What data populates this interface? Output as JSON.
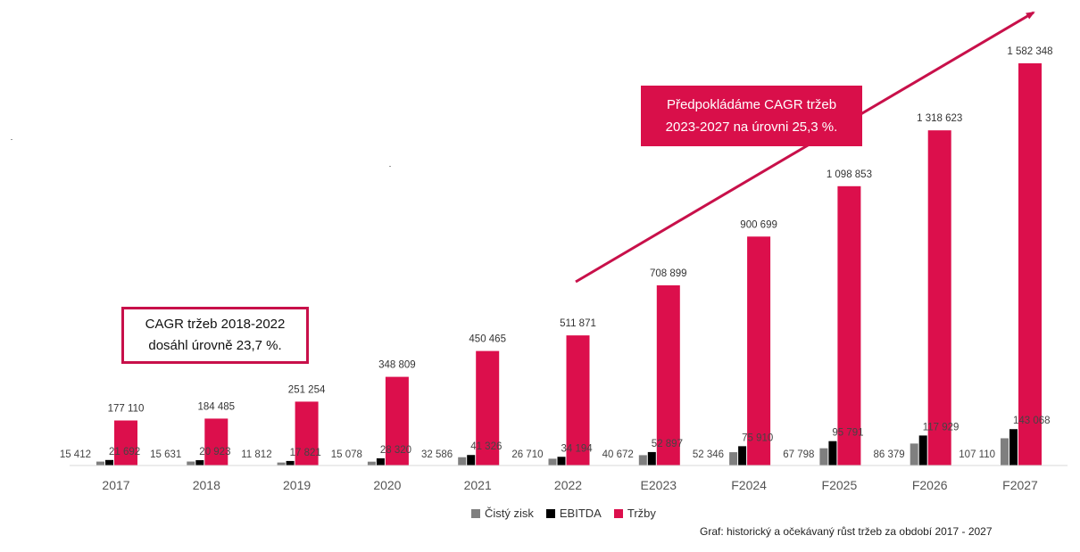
{
  "chart_data": {
    "type": "bar",
    "categories": [
      "2017",
      "2018",
      "2019",
      "2020",
      "2021",
      "2022",
      "E2023",
      "F2024",
      "F2025",
      "F2026",
      "F2027"
    ],
    "series": [
      {
        "name": "Čistý zisk",
        "color": "#7f7f7f",
        "values": [
          15412,
          15631,
          11812,
          15078,
          32586,
          26710,
          40672,
          52346,
          67798,
          86379,
          107110
        ],
        "labels": [
          "15 412",
          "15 631",
          "11 812",
          "15 078",
          "32 586",
          "26 710",
          "40 672",
          "52 346",
          "67 798",
          "86 379",
          "107 110"
        ]
      },
      {
        "name": "EBITDA",
        "color": "#000000",
        "values": [
          21692,
          20923,
          17821,
          28320,
          41326,
          34194,
          52897,
          75910,
          95791,
          117929,
          143068
        ],
        "labels": [
          "21 692",
          "20 923",
          "17 821",
          "28 320",
          "41 326",
          "34 194",
          "52 897",
          "75 910",
          "95 791",
          "117 929",
          "143 068"
        ]
      },
      {
        "name": "Tržby",
        "color": "#dc0f4c",
        "values": [
          177110,
          184485,
          251254,
          348809,
          450465,
          511871,
          708899,
          900699,
          1098853,
          1318623,
          1582348
        ],
        "labels": [
          "177 110",
          "184 485",
          "251 254",
          "348 809",
          "450 465",
          "511 871",
          "708 899",
          "900 699",
          "1 098 853",
          "1 318 623",
          "1 582 348"
        ]
      }
    ],
    "ylim": [
      0,
      1582348
    ],
    "grid": false,
    "legend_position": "bottom-center"
  },
  "annotations": {
    "left_box": {
      "line1": "CAGR tržeb 2018-2022",
      "line2": "dosáhl úrovně 23,7 %."
    },
    "right_box": {
      "line1": "Předpokládáme CAGR tržeb",
      "line2": "2023-2027 na úrovni 25,3 %."
    }
  },
  "legend": {
    "items": [
      {
        "label": "Čistý zisk",
        "color": "#7f7f7f"
      },
      {
        "label": "EBITDA",
        "color": "#000000"
      },
      {
        "label": "Tržby",
        "color": "#dc0f4c"
      }
    ]
  },
  "caption": "Graf: historický a očekávaný růst tržeb za období 2017 - 2027"
}
